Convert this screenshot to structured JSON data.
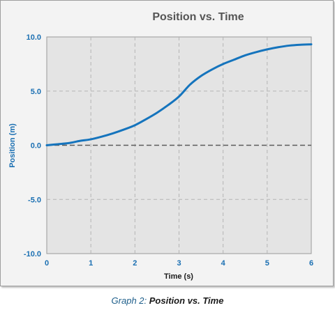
{
  "chart_data": {
    "type": "line",
    "title": "Position vs. Time",
    "xlabel": "Time (s)",
    "ylabel": "Position (m)",
    "xlim": [
      0,
      6
    ],
    "ylim": [
      -10,
      10
    ],
    "x_ticks": [
      0,
      1,
      2,
      3,
      4,
      5,
      6
    ],
    "x_tick_labels": [
      "0",
      "1",
      "2",
      "3",
      "4",
      "5",
      "6"
    ],
    "y_ticks": [
      10,
      5,
      0,
      -5,
      -10
    ],
    "y_tick_labels": [
      "10.0",
      "5.0",
      "0.0",
      "-5.0",
      "-10.0"
    ],
    "grid": true,
    "zero_line": true,
    "series": [
      {
        "color": "#1574bd",
        "x": [
          0,
          0.25,
          0.5,
          0.75,
          1,
          1.25,
          1.5,
          1.75,
          2,
          2.25,
          2.5,
          2.75,
          3,
          3.25,
          3.5,
          3.75,
          4,
          4.25,
          4.5,
          4.75,
          5,
          5.25,
          5.5,
          5.75,
          6
        ],
        "y": [
          0,
          0.1,
          0.2,
          0.4,
          0.55,
          0.8,
          1.1,
          1.45,
          1.85,
          2.4,
          3.0,
          3.7,
          4.5,
          5.6,
          6.4,
          7.0,
          7.5,
          7.9,
          8.3,
          8.6,
          8.85,
          9.05,
          9.2,
          9.28,
          9.32
        ]
      }
    ]
  },
  "caption": {
    "label": "Graph 2:",
    "text": "Position vs. Time"
  },
  "colors": {
    "plot_background": "#e4e4e4",
    "frame_background": "#f3f3f3",
    "axis_text": "#1a6fb2",
    "title_text": "#555555",
    "grid": "#b4b4b4",
    "zero_line": "#5a5a5a",
    "series_line": "#1574bd"
  }
}
